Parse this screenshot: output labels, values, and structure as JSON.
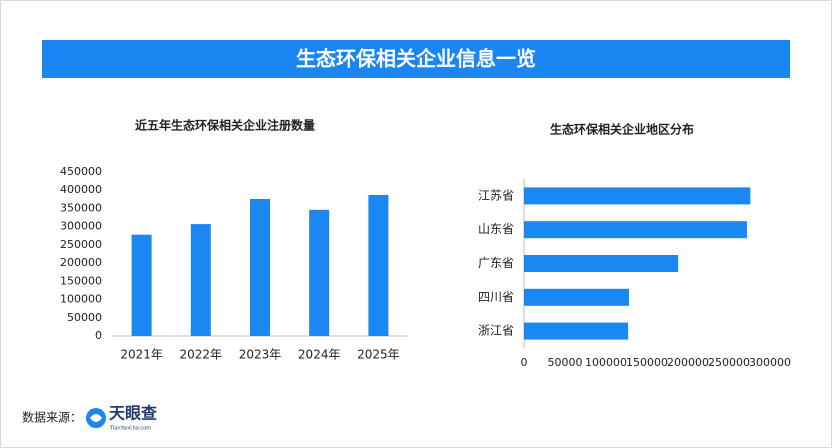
{
  "header": {
    "title": "生态环保相关企业信息一览"
  },
  "chart_data": [
    {
      "type": "bar",
      "title": "近五年生态环保相关企业注册数量",
      "categories": [
        "2021年",
        "2022年",
        "2023年",
        "2024年",
        "2025年"
      ],
      "values": [
        278000,
        307000,
        376000,
        346000,
        387000
      ],
      "color": "#1a87f2",
      "ylim": [
        0,
        450000
      ],
      "yticks": [
        0,
        50000,
        100000,
        150000,
        200000,
        250000,
        300000,
        350000,
        400000,
        450000
      ],
      "grid": false
    },
    {
      "type": "barh",
      "title": "生态环保相关企业地区分布",
      "categories": [
        "江苏省",
        "山东省",
        "广东省",
        "四川省",
        "浙江省"
      ],
      "values": [
        276000,
        272000,
        188000,
        128000,
        127000
      ],
      "color": "#1a87f2",
      "xlim": [
        0,
        300000
      ],
      "xticks": [
        0,
        50000,
        100000,
        150000,
        200000,
        250000,
        300000
      ],
      "grid": false
    }
  ],
  "footer": {
    "source_label": "数据来源：",
    "logo_name": "天眼查",
    "logo_url": "TianYanCha.com"
  }
}
